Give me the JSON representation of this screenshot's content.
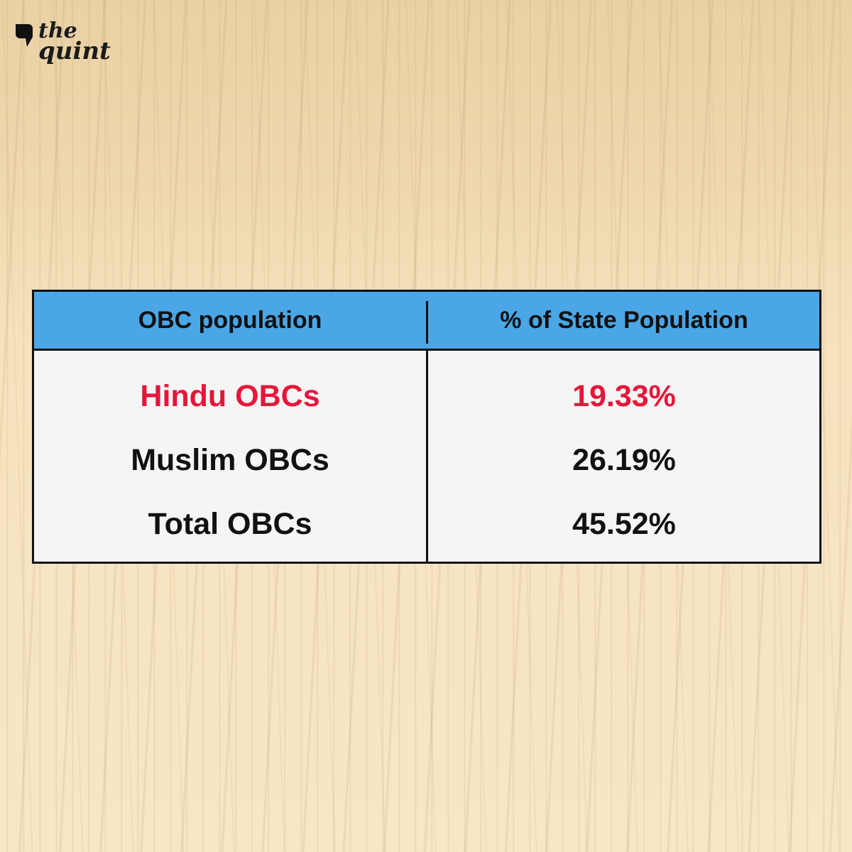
{
  "brand": {
    "logo_line1": "the",
    "logo_line2": "quint"
  },
  "colors": {
    "background": "#f7e3bf",
    "header_fill": "#4aa6e6",
    "highlight_text": "#e5163a",
    "border": "#111111"
  },
  "chart_data": {
    "type": "table",
    "title": "",
    "columns": [
      "OBC population",
      "% of State Population"
    ],
    "rows": [
      {
        "group": "Hindu OBCs",
        "value": "19.33%",
        "highlight": true
      },
      {
        "group": "Muslim OBCs",
        "value": "26.19%",
        "highlight": false
      },
      {
        "group": "Total OBCs",
        "value": "45.52%",
        "highlight": false
      }
    ]
  }
}
